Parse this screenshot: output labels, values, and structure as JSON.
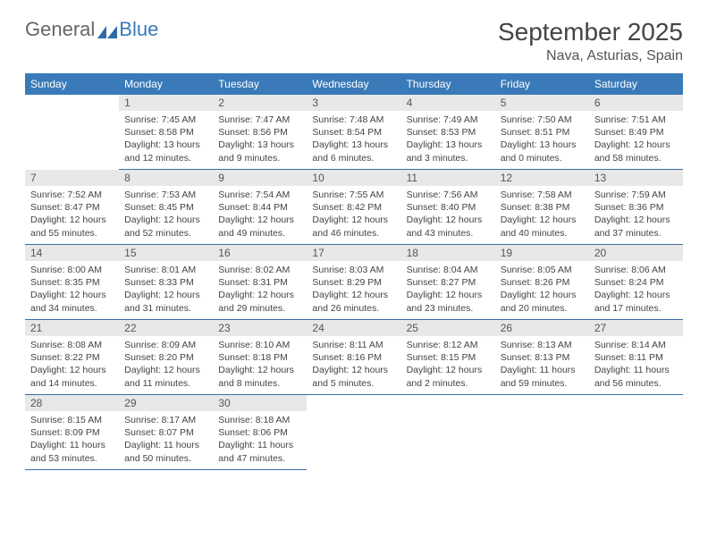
{
  "brand": {
    "name_gray": "General",
    "name_blue": "Blue"
  },
  "title": "September 2025",
  "location": "Nava, Asturias, Spain",
  "colors": {
    "header_bg": "#3a7ab8",
    "header_text": "#ffffff",
    "daynum_bg": "#e8e8e8",
    "daynum_text": "#555555",
    "cell_border": "#3a6ea5",
    "body_text": "#444444",
    "page_bg": "#ffffff"
  },
  "typography": {
    "title_fontsize": 28,
    "location_fontsize": 16,
    "dayhead_fontsize": 12,
    "cell_fontsize": 10.5
  },
  "layout": {
    "columns": 7,
    "rows": 5,
    "leading_blanks": 1
  },
  "day_headers": [
    "Sunday",
    "Monday",
    "Tuesday",
    "Wednesday",
    "Thursday",
    "Friday",
    "Saturday"
  ],
  "days": [
    {
      "n": "1",
      "sunrise": "Sunrise: 7:45 AM",
      "sunset": "Sunset: 8:58 PM",
      "daylight": "Daylight: 13 hours and 12 minutes."
    },
    {
      "n": "2",
      "sunrise": "Sunrise: 7:47 AM",
      "sunset": "Sunset: 8:56 PM",
      "daylight": "Daylight: 13 hours and 9 minutes."
    },
    {
      "n": "3",
      "sunrise": "Sunrise: 7:48 AM",
      "sunset": "Sunset: 8:54 PM",
      "daylight": "Daylight: 13 hours and 6 minutes."
    },
    {
      "n": "4",
      "sunrise": "Sunrise: 7:49 AM",
      "sunset": "Sunset: 8:53 PM",
      "daylight": "Daylight: 13 hours and 3 minutes."
    },
    {
      "n": "5",
      "sunrise": "Sunrise: 7:50 AM",
      "sunset": "Sunset: 8:51 PM",
      "daylight": "Daylight: 13 hours and 0 minutes."
    },
    {
      "n": "6",
      "sunrise": "Sunrise: 7:51 AM",
      "sunset": "Sunset: 8:49 PM",
      "daylight": "Daylight: 12 hours and 58 minutes."
    },
    {
      "n": "7",
      "sunrise": "Sunrise: 7:52 AM",
      "sunset": "Sunset: 8:47 PM",
      "daylight": "Daylight: 12 hours and 55 minutes."
    },
    {
      "n": "8",
      "sunrise": "Sunrise: 7:53 AM",
      "sunset": "Sunset: 8:45 PM",
      "daylight": "Daylight: 12 hours and 52 minutes."
    },
    {
      "n": "9",
      "sunrise": "Sunrise: 7:54 AM",
      "sunset": "Sunset: 8:44 PM",
      "daylight": "Daylight: 12 hours and 49 minutes."
    },
    {
      "n": "10",
      "sunrise": "Sunrise: 7:55 AM",
      "sunset": "Sunset: 8:42 PM",
      "daylight": "Daylight: 12 hours and 46 minutes."
    },
    {
      "n": "11",
      "sunrise": "Sunrise: 7:56 AM",
      "sunset": "Sunset: 8:40 PM",
      "daylight": "Daylight: 12 hours and 43 minutes."
    },
    {
      "n": "12",
      "sunrise": "Sunrise: 7:58 AM",
      "sunset": "Sunset: 8:38 PM",
      "daylight": "Daylight: 12 hours and 40 minutes."
    },
    {
      "n": "13",
      "sunrise": "Sunrise: 7:59 AM",
      "sunset": "Sunset: 8:36 PM",
      "daylight": "Daylight: 12 hours and 37 minutes."
    },
    {
      "n": "14",
      "sunrise": "Sunrise: 8:00 AM",
      "sunset": "Sunset: 8:35 PM",
      "daylight": "Daylight: 12 hours and 34 minutes."
    },
    {
      "n": "15",
      "sunrise": "Sunrise: 8:01 AM",
      "sunset": "Sunset: 8:33 PM",
      "daylight": "Daylight: 12 hours and 31 minutes."
    },
    {
      "n": "16",
      "sunrise": "Sunrise: 8:02 AM",
      "sunset": "Sunset: 8:31 PM",
      "daylight": "Daylight: 12 hours and 29 minutes."
    },
    {
      "n": "17",
      "sunrise": "Sunrise: 8:03 AM",
      "sunset": "Sunset: 8:29 PM",
      "daylight": "Daylight: 12 hours and 26 minutes."
    },
    {
      "n": "18",
      "sunrise": "Sunrise: 8:04 AM",
      "sunset": "Sunset: 8:27 PM",
      "daylight": "Daylight: 12 hours and 23 minutes."
    },
    {
      "n": "19",
      "sunrise": "Sunrise: 8:05 AM",
      "sunset": "Sunset: 8:26 PM",
      "daylight": "Daylight: 12 hours and 20 minutes."
    },
    {
      "n": "20",
      "sunrise": "Sunrise: 8:06 AM",
      "sunset": "Sunset: 8:24 PM",
      "daylight": "Daylight: 12 hours and 17 minutes."
    },
    {
      "n": "21",
      "sunrise": "Sunrise: 8:08 AM",
      "sunset": "Sunset: 8:22 PM",
      "daylight": "Daylight: 12 hours and 14 minutes."
    },
    {
      "n": "22",
      "sunrise": "Sunrise: 8:09 AM",
      "sunset": "Sunset: 8:20 PM",
      "daylight": "Daylight: 12 hours and 11 minutes."
    },
    {
      "n": "23",
      "sunrise": "Sunrise: 8:10 AM",
      "sunset": "Sunset: 8:18 PM",
      "daylight": "Daylight: 12 hours and 8 minutes."
    },
    {
      "n": "24",
      "sunrise": "Sunrise: 8:11 AM",
      "sunset": "Sunset: 8:16 PM",
      "daylight": "Daylight: 12 hours and 5 minutes."
    },
    {
      "n": "25",
      "sunrise": "Sunrise: 8:12 AM",
      "sunset": "Sunset: 8:15 PM",
      "daylight": "Daylight: 12 hours and 2 minutes."
    },
    {
      "n": "26",
      "sunrise": "Sunrise: 8:13 AM",
      "sunset": "Sunset: 8:13 PM",
      "daylight": "Daylight: 11 hours and 59 minutes."
    },
    {
      "n": "27",
      "sunrise": "Sunrise: 8:14 AM",
      "sunset": "Sunset: 8:11 PM",
      "daylight": "Daylight: 11 hours and 56 minutes."
    },
    {
      "n": "28",
      "sunrise": "Sunrise: 8:15 AM",
      "sunset": "Sunset: 8:09 PM",
      "daylight": "Daylight: 11 hours and 53 minutes."
    },
    {
      "n": "29",
      "sunrise": "Sunrise: 8:17 AM",
      "sunset": "Sunset: 8:07 PM",
      "daylight": "Daylight: 11 hours and 50 minutes."
    },
    {
      "n": "30",
      "sunrise": "Sunrise: 8:18 AM",
      "sunset": "Sunset: 8:06 PM",
      "daylight": "Daylight: 11 hours and 47 minutes."
    }
  ]
}
